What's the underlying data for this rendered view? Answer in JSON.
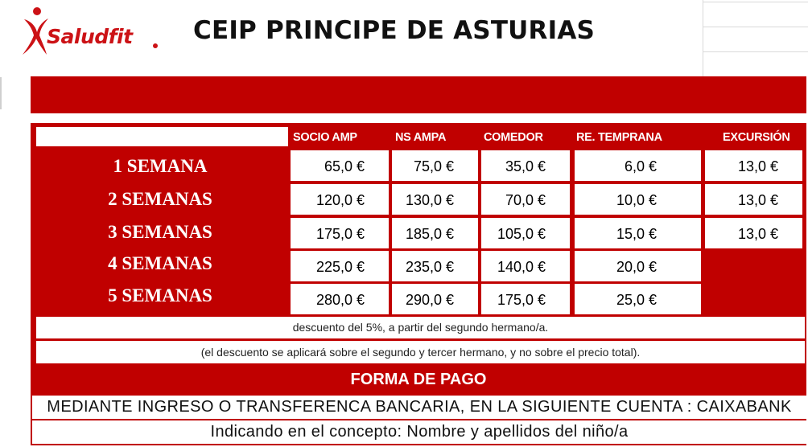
{
  "header": {
    "logo_text": "Saludfit",
    "title": "CEIP PRINCIPE DE ASTURIAS"
  },
  "colors": {
    "brand_red": "#c00000",
    "logo_red": "#cc1216"
  },
  "table": {
    "columns": [
      "SOCIO AMP",
      "NS AMPA",
      "COMEDOR",
      "RE. TEMPRANA",
      "EXCURSIÓN"
    ],
    "rows": [
      {
        "label": "1 SEMANA",
        "values": [
          "65,0 €",
          "75,0 €",
          "35,0 €",
          "6,0 €",
          "13,0 €"
        ]
      },
      {
        "label": "2 SEMANAS",
        "values": [
          "120,0 €",
          "130,0 €",
          "70,0 €",
          "10,0 €",
          "13,0 €"
        ]
      },
      {
        "label": "3 SEMANAS",
        "values": [
          "175,0 €",
          "185,0 €",
          "105,0 €",
          "15,0 €",
          "13,0 €"
        ]
      },
      {
        "label": "4 SEMANAS",
        "values": [
          "225,0 €",
          "235,0 €",
          "140,0 €",
          "20,0 €",
          ""
        ]
      },
      {
        "label": "5 SEMANAS",
        "values": [
          "280,0 €",
          "290,0 €",
          "175,0 €",
          "25,0 €",
          ""
        ]
      }
    ]
  },
  "notes": {
    "discount": "descuento del  5%, a partir del segundo hermano/a.",
    "discount_detail": "(el descuento se aplicará sobre el segundo y tercer hermano, y no sobre el precio total)."
  },
  "payment": {
    "heading": "FORMA DE PAGO",
    "method": "MEDIANTE INGRESO O TRANSFERENCA BANCARIA, EN LA SIGUIENTE CUENTA  : CAIXABANK",
    "concept": "Indicando en el concepto: Nombre y apellidos del niño/a"
  }
}
